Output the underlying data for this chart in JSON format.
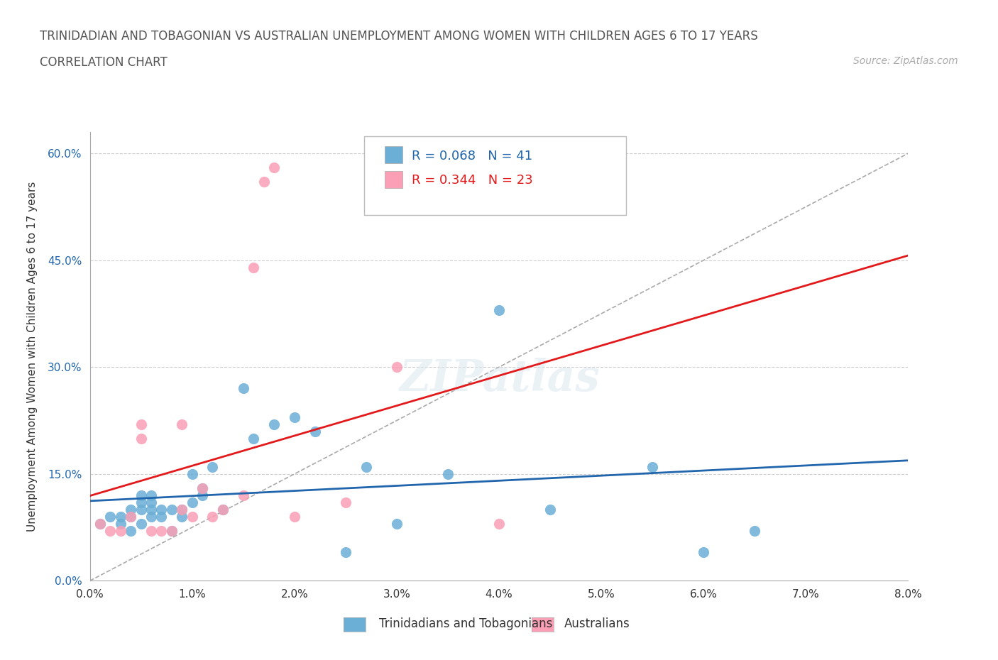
{
  "title_line1": "TRINIDADIAN AND TOBAGONIAN VS AUSTRALIAN UNEMPLOYMENT AMONG WOMEN WITH CHILDREN AGES 6 TO 17 YEARS",
  "title_line2": "CORRELATION CHART",
  "source": "Source: ZipAtlas.com",
  "xlabel_ticks": [
    "0.0%",
    "1.0%",
    "2.0%",
    "3.0%",
    "4.0%",
    "5.0%",
    "6.0%",
    "7.0%",
    "8.0%"
  ],
  "ylabel_label": "Unemployment Among Women with Children Ages 6 to 17 years",
  "ytick_labels": [
    "0.0%",
    "15.0%",
    "30.0%",
    "45.0%",
    "60.0%"
  ],
  "ytick_values": [
    0,
    0.15,
    0.3,
    0.45,
    0.6
  ],
  "xtick_values": [
    0,
    0.01,
    0.02,
    0.03,
    0.04,
    0.05,
    0.06,
    0.07,
    0.08
  ],
  "xlim": [
    0,
    0.08
  ],
  "ylim": [
    0,
    0.63
  ],
  "legend_label_1": "Trinidadians and Tobagonians",
  "legend_label_2": "Australians",
  "R1": 0.068,
  "N1": 41,
  "R2": 0.344,
  "N2": 23,
  "color_blue": "#6baed6",
  "color_pink": "#fa9fb5",
  "color_trendline_blue": "#2166ac",
  "color_trendline_pink": "#e31a1c",
  "color_diagonal": "#aaaaaa",
  "trinidadian_x": [
    0.001,
    0.002,
    0.003,
    0.003,
    0.004,
    0.004,
    0.004,
    0.005,
    0.005,
    0.005,
    0.005,
    0.006,
    0.006,
    0.006,
    0.006,
    0.007,
    0.007,
    0.008,
    0.008,
    0.009,
    0.009,
    0.01,
    0.01,
    0.011,
    0.011,
    0.012,
    0.013,
    0.015,
    0.016,
    0.018,
    0.02,
    0.022,
    0.025,
    0.027,
    0.03,
    0.035,
    0.04,
    0.045,
    0.055,
    0.06,
    0.065
  ],
  "trinidadian_y": [
    0.08,
    0.09,
    0.08,
    0.09,
    0.07,
    0.09,
    0.1,
    0.08,
    0.1,
    0.11,
    0.12,
    0.09,
    0.1,
    0.11,
    0.12,
    0.09,
    0.1,
    0.07,
    0.1,
    0.09,
    0.1,
    0.11,
    0.15,
    0.12,
    0.13,
    0.16,
    0.1,
    0.27,
    0.2,
    0.22,
    0.23,
    0.21,
    0.04,
    0.16,
    0.08,
    0.15,
    0.38,
    0.1,
    0.16,
    0.04,
    0.07
  ],
  "australian_x": [
    0.001,
    0.002,
    0.003,
    0.004,
    0.005,
    0.005,
    0.006,
    0.007,
    0.008,
    0.009,
    0.009,
    0.01,
    0.011,
    0.012,
    0.013,
    0.015,
    0.016,
    0.017,
    0.018,
    0.02,
    0.025,
    0.03,
    0.04
  ],
  "australian_y": [
    0.08,
    0.07,
    0.07,
    0.09,
    0.2,
    0.22,
    0.07,
    0.07,
    0.07,
    0.1,
    0.22,
    0.09,
    0.13,
    0.09,
    0.1,
    0.12,
    0.44,
    0.56,
    0.58,
    0.09,
    0.11,
    0.3,
    0.08
  ]
}
